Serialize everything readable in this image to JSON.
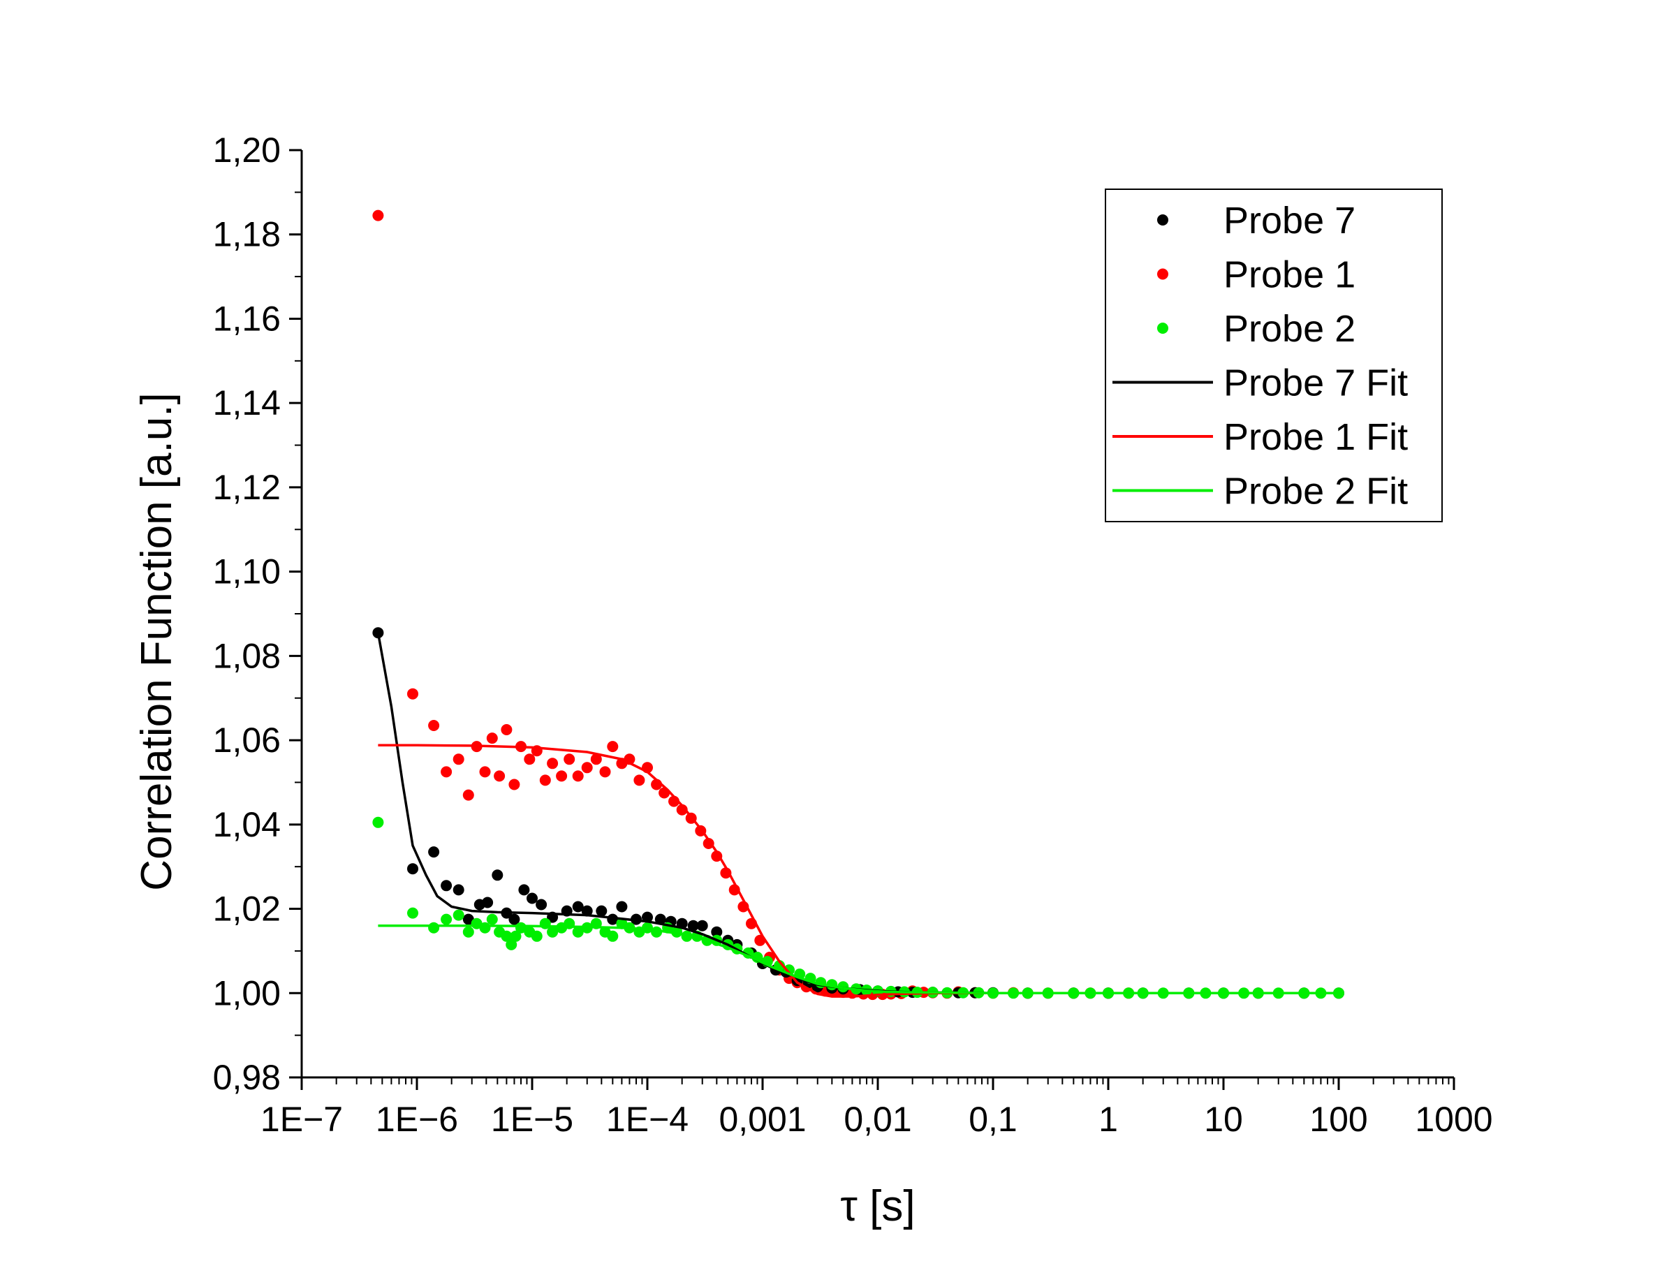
{
  "chart_data": {
    "type": "scatter",
    "title": "",
    "xlabel": "τ [s]",
    "ylabel": "Correlation Function [a.u.]",
    "xscale": "log",
    "xlim": [
      1e-07,
      1000
    ],
    "ylim": [
      0.98,
      1.2
    ],
    "x_tick_labels": [
      "1E−7",
      "1E−6",
      "1E−5",
      "1E−4",
      "0,001",
      "0,01",
      "0,1",
      "1",
      "10",
      "100",
      "1000"
    ],
    "y_tick_labels": [
      "0,98",
      "1,00",
      "1,02",
      "1,04",
      "1,06",
      "1,08",
      "1,10",
      "1,12",
      "1,14",
      "1,16",
      "1,18",
      "1,20"
    ],
    "grid": false,
    "legend_position": "top-right",
    "legend": [
      "Probe 7",
      "Probe 1",
      "Probe 2",
      "Probe 7 Fit",
      "Probe 1 Fit",
      "Probe 2 Fit"
    ],
    "series": [
      {
        "name": "Probe 7",
        "kind": "scatter",
        "color": "#000000",
        "x": [
          4.6e-07,
          9.2e-07,
          1.4e-06,
          1.8e-06,
          2.3e-06,
          2.8e-06,
          3.5e-06,
          4.1e-06,
          5e-06,
          6e-06,
          7e-06,
          8.5e-06,
          1e-05,
          1.2e-05,
          1.5e-05,
          2e-05,
          2.5e-05,
          3e-05,
          4e-05,
          5e-05,
          6e-05,
          8e-05,
          0.0001,
          0.00013,
          0.00016,
          0.0002,
          0.00025,
          0.0003,
          0.0004,
          0.0005,
          0.0006,
          0.0008,
          0.001,
          0.0013,
          0.0016,
          0.002,
          0.0025,
          0.003,
          0.004,
          0.005,
          0.007,
          0.01,
          0.015,
          0.02,
          0.03,
          0.05,
          0.07,
          0.1,
          0.2,
          0.5,
          1,
          2,
          5,
          10,
          20,
          50,
          100
        ],
        "y": [
          1.0855,
          1.0295,
          1.0335,
          1.0255,
          1.0245,
          1.0175,
          1.021,
          1.0215,
          1.028,
          1.019,
          1.0175,
          1.0245,
          1.0225,
          1.021,
          1.018,
          1.0195,
          1.0205,
          1.0195,
          1.0195,
          1.0175,
          1.0205,
          1.0175,
          1.018,
          1.0175,
          1.017,
          1.0165,
          1.016,
          1.016,
          1.0145,
          1.0125,
          1.0115,
          1.0095,
          1.007,
          1.0055,
          1.005,
          1.003,
          1.0025,
          1.0015,
          1.0012,
          1.001,
          1.0008,
          1.0005,
          1.0003,
          1.0002,
          1.0002,
          1.0001,
          1.0001,
          1.0001,
          1.0,
          1.0,
          1.0,
          1.0,
          1.0,
          1.0,
          1.0,
          1.0,
          1.0
        ]
      },
      {
        "name": "Probe 1",
        "kind": "scatter",
        "color": "#ff0000",
        "x": [
          4.6e-07,
          9.2e-07,
          1.4e-06,
          1.8e-06,
          2.3e-06,
          2.8e-06,
          3.3e-06,
          3.9e-06,
          4.5e-06,
          5.2e-06,
          6e-06,
          7e-06,
          8e-06,
          9.5e-06,
          1.1e-05,
          1.3e-05,
          1.5e-05,
          1.8e-05,
          2.1e-05,
          2.5e-05,
          3e-05,
          3.6e-05,
          4.3e-05,
          5e-05,
          6e-05,
          7e-05,
          8.5e-05,
          0.0001,
          0.00012,
          0.00014,
          0.00017,
          0.0002,
          0.00024,
          0.00029,
          0.00034,
          0.0004,
          0.00048,
          0.00057,
          0.00068,
          0.0008,
          0.00095,
          0.00115,
          0.0014,
          0.0017,
          0.002,
          0.0024,
          0.0029,
          0.0035,
          0.0042,
          0.005,
          0.006,
          0.0075,
          0.009,
          0.011,
          0.013,
          0.016,
          0.02,
          0.025,
          0.03,
          0.04,
          0.05,
          0.07,
          0.1,
          0.15,
          0.2,
          0.3,
          0.5,
          0.7,
          1,
          1.5
        ],
        "y": [
          1.1845,
          1.071,
          1.0635,
          1.0525,
          1.0555,
          1.047,
          1.0585,
          1.0525,
          1.0605,
          1.0515,
          1.0625,
          1.0495,
          1.0585,
          1.0555,
          1.0575,
          1.0505,
          1.0545,
          1.0515,
          1.0555,
          1.0515,
          1.0535,
          1.0555,
          1.0525,
          1.0585,
          1.0545,
          1.0555,
          1.0505,
          1.0535,
          1.0495,
          1.0475,
          1.0455,
          1.0435,
          1.0415,
          1.0385,
          1.0355,
          1.0325,
          1.0285,
          1.0245,
          1.0205,
          1.0165,
          1.0125,
          1.0085,
          1.0055,
          1.0035,
          1.0025,
          1.0015,
          1.001,
          1.0005,
          1.0003,
          1.0002,
          1.0,
          0.9998,
          0.9997,
          0.9997,
          0.9998,
          0.9999,
          1.0005,
          1.0002,
          1.0001,
          1.0,
          1.0003,
          1.0001,
          1.0,
          1.0001,
          1.0,
          1.0,
          1.0,
          1.0,
          1.0,
          1.0
        ]
      },
      {
        "name": "Probe 2",
        "kind": "scatter",
        "color": "#00ee00",
        "x": [
          4.6e-07,
          9.2e-07,
          1.4e-06,
          1.8e-06,
          2.3e-06,
          2.8e-06,
          3.3e-06,
          3.9e-06,
          4.5e-06,
          5.2e-06,
          6e-06,
          6.6e-06,
          7.2e-06,
          8e-06,
          9.5e-06,
          1.1e-05,
          1.3e-05,
          1.5e-05,
          1.8e-05,
          2.1e-05,
          2.5e-05,
          3e-05,
          3.6e-05,
          4.3e-05,
          5e-05,
          6e-05,
          7e-05,
          8.5e-05,
          0.0001,
          0.00012,
          0.00015,
          0.00018,
          0.00022,
          0.00027,
          0.00033,
          0.0004,
          0.0005,
          0.0006,
          0.00075,
          0.0009,
          0.0011,
          0.0014,
          0.0017,
          0.0021,
          0.0026,
          0.0032,
          0.004,
          0.005,
          0.0065,
          0.008,
          0.01,
          0.013,
          0.017,
          0.022,
          0.03,
          0.04,
          0.055,
          0.075,
          0.1,
          0.15,
          0.2,
          0.3,
          0.5,
          0.7,
          1,
          1.5,
          2,
          3,
          5,
          7,
          10,
          15,
          20,
          30,
          50,
          70,
          100
        ],
        "y": [
          1.0405,
          1.019,
          1.0155,
          1.0175,
          1.0185,
          1.0145,
          1.0165,
          1.0155,
          1.0175,
          1.0145,
          1.0135,
          1.0115,
          1.0135,
          1.0155,
          1.0145,
          1.0135,
          1.0165,
          1.0145,
          1.0155,
          1.0165,
          1.0145,
          1.0155,
          1.0165,
          1.0145,
          1.0135,
          1.0165,
          1.0155,
          1.0145,
          1.0155,
          1.0145,
          1.0155,
          1.0145,
          1.0135,
          1.0135,
          1.0125,
          1.0125,
          1.0115,
          1.0105,
          1.0095,
          1.0085,
          1.0075,
          1.0065,
          1.0055,
          1.0045,
          1.0035,
          1.0025,
          1.002,
          1.0015,
          1.001,
          1.0007,
          1.0005,
          1.0004,
          1.0003,
          1.0002,
          1.0002,
          1.0001,
          1.0001,
          1.0001,
          1.0,
          1.0,
          1.0,
          1.0,
          1.0,
          1.0,
          1.0,
          1.0,
          1.0,
          1.0,
          1.0,
          1.0,
          1.0,
          1.0,
          1.0,
          1.0,
          1.0,
          1.0,
          1.0
        ]
      },
      {
        "name": "Probe 7 Fit",
        "kind": "line",
        "color": "#000000",
        "x": [
          4.6e-07,
          6e-07,
          7.5e-07,
          9.2e-07,
          1.2e-06,
          1.5e-06,
          2e-06,
          3e-06,
          5e-06,
          1e-05,
          3e-05,
          0.0001,
          0.0002,
          0.0003,
          0.0005,
          0.0008,
          0.0012,
          0.002,
          0.003,
          0.005,
          0.008,
          0.012,
          0.02,
          0.05,
          0.1,
          1,
          10,
          100
        ],
        "y": [
          1.0855,
          1.068,
          1.05,
          1.035,
          1.028,
          1.023,
          1.0205,
          1.0195,
          1.0192,
          1.019,
          1.0185,
          1.017,
          1.0155,
          1.014,
          1.0115,
          1.0085,
          1.006,
          1.0035,
          1.002,
          1.0012,
          1.0007,
          1.0004,
          1.0002,
          1.0001,
          1.0,
          1.0,
          1.0,
          1.0
        ]
      },
      {
        "name": "Probe 1 Fit",
        "kind": "line",
        "color": "#ff0000",
        "x": [
          4.6e-07,
          1e-06,
          3e-06,
          1e-05,
          3e-05,
          6e-05,
          0.0001,
          0.00015,
          0.0002,
          0.0003,
          0.0004,
          0.0005,
          0.0007,
          0.001,
          0.0014,
          0.002,
          0.003,
          0.004,
          0.006,
          0.008,
          0.01,
          0.015,
          0.02,
          0.03,
          0.05,
          0.1,
          1,
          10
        ],
        "y": [
          1.0588,
          1.0588,
          1.0587,
          1.0583,
          1.0572,
          1.0555,
          1.0525,
          1.0482,
          1.0445,
          1.0385,
          1.0335,
          1.029,
          1.0215,
          1.0135,
          1.0075,
          1.0025,
          0.9998,
          0.9992,
          0.9992,
          0.9994,
          0.9996,
          0.9998,
          0.9999,
          1.0,
          1.0,
          1.0,
          1.0,
          1.0
        ]
      },
      {
        "name": "Probe 2 Fit",
        "kind": "line",
        "color": "#00ee00",
        "x": [
          4.6e-07,
          1e-06,
          3e-06,
          1e-05,
          3e-05,
          6e-05,
          0.0001,
          0.0002,
          0.0003,
          0.0005,
          0.0008,
          0.0012,
          0.002,
          0.003,
          0.005,
          0.008,
          0.012,
          0.02,
          0.05,
          0.1,
          1,
          10,
          100
        ],
        "y": [
          1.016,
          1.016,
          1.016,
          1.0159,
          1.0157,
          1.0155,
          1.0152,
          1.014,
          1.0128,
          1.0108,
          1.0085,
          1.0062,
          1.0038,
          1.0022,
          1.0012,
          1.0006,
          1.0003,
          1.0002,
          1.0001,
          1.0,
          1.0,
          1.0,
          1.0
        ]
      }
    ]
  }
}
